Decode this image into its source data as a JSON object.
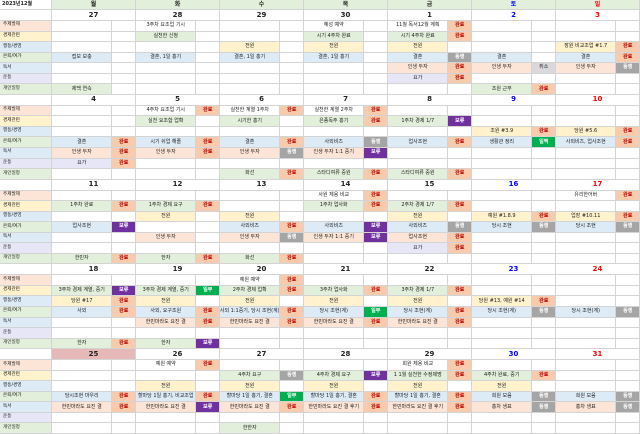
{
  "title": "2023년12월",
  "days_of_week": [
    "월",
    "화",
    "수",
    "목",
    "금",
    "토",
    "일"
  ],
  "row_labels": [
    "주제발제",
    "경제관련",
    "행동/경영",
    "은퇴/여가",
    "독서",
    "운동",
    "개인일정"
  ],
  "colors": {
    "done_text": "#c00000",
    "saturday": "#0000ff",
    "sunday": "#ff0000",
    "hold": "#7030a0"
  },
  "weeks": [
    {
      "dates": [
        "27",
        "28",
        "29",
        "30",
        "1",
        "2",
        "3"
      ],
      "today": -1,
      "rows": [
        [
          "",
          "",
          "3주차 요조업 기시",
          "",
          "",
          "",
          "혜성 예약",
          "",
          "11월 독서12월 계획",
          "완료",
          "",
          "",
          "",
          ""
        ],
        [
          "",
          "",
          "실천한 신청",
          "",
          "",
          "",
          "시기 4주차 완료",
          "",
          "시기 4주차 완료",
          "완료",
          "",
          "",
          "",
          ""
        ],
        [
          "",
          "",
          "",
          "",
          "전원",
          "",
          "전원",
          "",
          "전원",
          "",
          "",
          "",
          "장원 비교조업 #1.7",
          "완료"
        ],
        [
          "접보 보충",
          "",
          "결혼, 1일 홍기",
          "",
          "결혼, 1일 홍기",
          "",
          "결혼, 1일 홍기",
          "",
          "결혼",
          "동행",
          "결혼",
          "",
          "결혼",
          "완료"
        ],
        [
          "",
          "",
          "",
          "",
          "",
          "",
          "",
          "",
          "인생 두자",
          "완료",
          "인생 두자",
          "취소",
          "인생 두자",
          "동행"
        ],
        [
          "",
          "",
          "",
          "",
          "",
          "",
          "",
          "",
          "요가",
          "완료",
          "",
          "",
          "",
          ""
        ],
        [
          "제백 연속",
          "",
          "",
          "",
          "",
          "",
          "",
          "",
          "",
          "",
          "조원 근무",
          "완료",
          "",
          ""
        ]
      ]
    },
    {
      "dates": [
        "4",
        "5",
        "6",
        "7",
        "8",
        "9",
        "10"
      ],
      "today": -1,
      "rows": [
        [
          "",
          "",
          "4주차 요조업 기시",
          "완료",
          "실천한 계열 1주차",
          "완료",
          "실천한 계열 2주차",
          "완료",
          "",
          "",
          "",
          "",
          "",
          ""
        ],
        [
          "",
          "",
          "실천 요조합 업확",
          "",
          "시기한 홍기",
          "",
          "은종독주 홍기",
          "완료",
          "1주차 경제 1/7",
          "보류",
          "",
          "",
          "",
          ""
        ],
        [
          "",
          "",
          "",
          "",
          "",
          "",
          "",
          "",
          "",
          "",
          "조원 #3.9",
          "완료",
          "당원 #5.6",
          "완료"
        ],
        [
          "결혼",
          "완료",
          "시기 쉬업 해졸",
          "완료",
          "결혼",
          "완료",
          "사외비즈",
          "동행",
          "업사조현",
          "완료",
          "생활관 정리",
          "일찍",
          "사외비즈, 업사조현",
          "완료"
        ],
        [
          "인생 두자",
          "완료",
          "인생 두자",
          "완료",
          "인생 두자",
          "동행",
          "인생 두자 1:1 중기",
          "보류",
          "",
          "",
          "",
          "",
          "",
          ""
        ],
        [
          "요가",
          "완료",
          "",
          "",
          "",
          "",
          "",
          "",
          "",
          "",
          "",
          "",
          "",
          ""
        ],
        [
          "",
          "",
          "",
          "",
          "화선",
          "완료",
          "스타디여류 중원",
          "완료",
          "스타디여류 중원",
          "완료",
          "",
          "",
          "",
          ""
        ]
      ]
    },
    {
      "dates": [
        "11",
        "12",
        "13",
        "14",
        "15",
        "16",
        "17"
      ],
      "today": -1,
      "rows": [
        [
          "",
          "",
          "",
          "",
          "",
          "",
          "사원 체용 비교",
          "완료",
          "",
          "",
          "",
          "",
          "유리한어버",
          "완료"
        ],
        [
          "1주차 완료",
          "완료",
          "1주차 경제 요구",
          "완료",
          "",
          "",
          "1주차 업사화",
          "완료",
          "2주차 경제 1/7",
          "완료",
          "",
          "",
          "",
          ""
        ],
        [
          "",
          "",
          "전원",
          "",
          "전원",
          "",
          "",
          "",
          "전원",
          "",
          "예원 #1.8.9",
          "완료",
          "업장 #10.11",
          "완료"
        ],
        [
          "업사조현",
          "보류",
          "",
          "",
          "사외비즈",
          "완료",
          "사외비즈",
          "보류",
          "사외비즈",
          "동행",
          "당시 조현",
          "동행",
          "당시 조현",
          "동행"
        ],
        [
          "",
          "",
          "인생 두자",
          "",
          "인생 두자",
          "동행",
          "인생 두자 1:1 중기",
          "보류",
          "업사조현",
          "완료",
          "",
          "",
          "",
          ""
        ],
        [
          "",
          "",
          "",
          "",
          "",
          "",
          "",
          "",
          "요가",
          "완료",
          "",
          "",
          "",
          ""
        ],
        [
          "한민자",
          "완료",
          "한자",
          "완료",
          "화선",
          "완료",
          "",
          "",
          "",
          "",
          "",
          "",
          "",
          ""
        ]
      ]
    },
    {
      "dates": [
        "18",
        "19",
        "20",
        "21",
        "22",
        "23",
        "24"
      ],
      "today": -1,
      "rows": [
        [
          "",
          "",
          "",
          "",
          "예원 예약",
          "완료",
          "",
          "",
          "",
          "",
          "",
          "",
          "",
          ""
        ],
        [
          "3주차 경제 계열, 중기",
          "보류",
          "3주차 경제 계열, 중기",
          "일부",
          "2주차 경제 업확",
          "완료",
          "3주차 업사화",
          "완료",
          "3주차 경제 1/7",
          "완료",
          "",
          "",
          "",
          ""
        ],
        [
          "당원 #17",
          "완료",
          "전원",
          "",
          "전원",
          "",
          "전원",
          "",
          "전원",
          "",
          "당원 #13, 예원 #14",
          "완료",
          "",
          ""
        ],
        [
          "사외",
          "완료",
          "사외, 요구조원",
          "완료",
          "사외 1:1중기, 당시 조현(계)",
          "완료",
          "당시 조현(계)",
          "일부",
          "당시 조현(계)",
          "완료",
          "당시 조현(계)",
          "동행",
          "당시 조현(계)",
          "동행"
        ],
        [
          "",
          "",
          "한민마라도 요진 결",
          "완료",
          "한민마라도 요진 결",
          "완료",
          "한민마라도 요진 결",
          "완료",
          "한민마라도 요진 결",
          "완료",
          "",
          "",
          "",
          ""
        ],
        [
          "",
          "",
          "",
          "",
          "",
          "",
          "",
          "",
          "",
          "",
          "",
          "",
          "",
          ""
        ],
        [
          "한자",
          "완료",
          "한자",
          "보류",
          "",
          "",
          "",
          "",
          "",
          "",
          "",
          "",
          "",
          ""
        ]
      ]
    },
    {
      "dates": [
        "25",
        "26",
        "27",
        "28",
        "29",
        "30",
        "31"
      ],
      "today": 0,
      "rows": [
        [
          "",
          "",
          "예원 예약",
          "완료",
          "",
          "",
          "",
          "",
          "희원 체용 비교",
          "완료",
          "",
          "",
          "",
          ""
        ],
        [
          "",
          "",
          "",
          "",
          "4주차 요구",
          "동행",
          "4주차 경제 요구",
          "보류",
          "1 1월 실천한 수정제명",
          "완료",
          "4주차 완료, 중기",
          "완료",
          "",
          ""
        ],
        [
          "",
          "",
          "전원",
          "",
          "전원",
          "",
          "전원",
          "",
          "전원",
          "",
          "전원",
          "",
          "",
          ""
        ],
        [
          "당시조현 마우리",
          "완료",
          "할마당 1일 홍기, 비교조업",
          "완료",
          "할마당 1일 홍기, 결혼",
          "일부",
          "할마당 1일 홍기, 결혼",
          "완료",
          "할마당 1일 홍기, 결혼",
          "완료",
          "희원 모음",
          "동행",
          "희원 모음",
          "동행"
        ],
        [
          "한민마라도 요진 결",
          "완료",
          "한민마라도 요진 결",
          "보류",
          "한민마라도 요진 결",
          "완료",
          "한민마라도 요진 결 후기",
          "완료",
          "한민마라도 요진 결 후기",
          "완료",
          "홍차 생표",
          "동행",
          "홍차 생표",
          "동행"
        ],
        [
          "",
          "",
          "",
          "",
          "",
          "",
          "",
          "",
          "",
          "",
          "",
          "",
          "",
          ""
        ],
        [
          "",
          "",
          "",
          "",
          "한한자",
          "",
          "",
          "",
          "",
          "",
          "",
          "",
          "",
          ""
        ]
      ]
    }
  ]
}
